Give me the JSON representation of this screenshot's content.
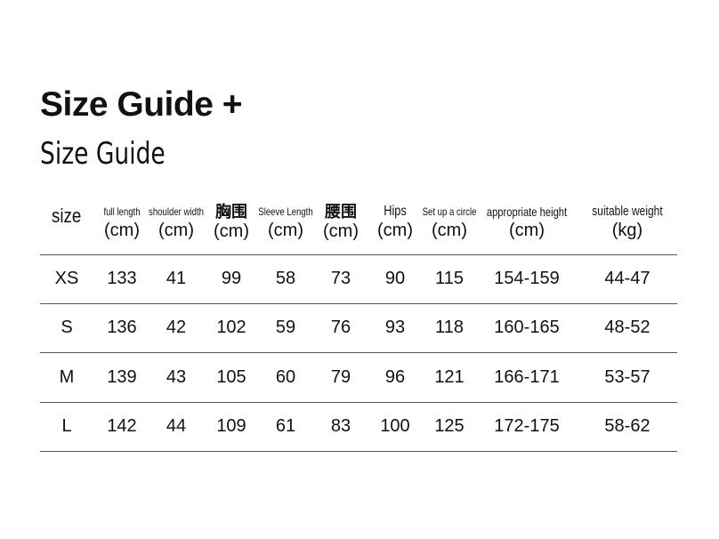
{
  "title": "Size Guide +",
  "subtitle": "Size Guide",
  "table": {
    "size_header": "size",
    "columns": [
      {
        "label": "full length",
        "unit": "(cm)"
      },
      {
        "label": "shoulder width",
        "unit": "(cm)"
      },
      {
        "label": "胸围",
        "unit": "(cm)"
      },
      {
        "label": "Sleeve Length",
        "unit": "(cm)"
      },
      {
        "label": "腰围",
        "unit": "(cm)"
      },
      {
        "label": "Hips",
        "unit": "(cm)"
      },
      {
        "label": "Set up a circle",
        "unit": "(cm)"
      },
      {
        "label": "appropriate height",
        "unit": "(cm)"
      },
      {
        "label": "suitable weight",
        "unit": "(kg)"
      }
    ],
    "rows": [
      [
        "XS",
        "133",
        "41",
        "99",
        "58",
        "73",
        "90",
        "115",
        "154-159",
        "44-47"
      ],
      [
        "S",
        "136",
        "42",
        "102",
        "59",
        "76",
        "93",
        "118",
        "160-165",
        "48-52"
      ],
      [
        "M",
        "139",
        "43",
        "105",
        "60",
        "79",
        "96",
        "121",
        "166-171",
        "53-57"
      ],
      [
        "L",
        "142",
        "44",
        "109",
        "61",
        "83",
        "100",
        "125",
        "172-175",
        "58-62"
      ]
    ]
  }
}
